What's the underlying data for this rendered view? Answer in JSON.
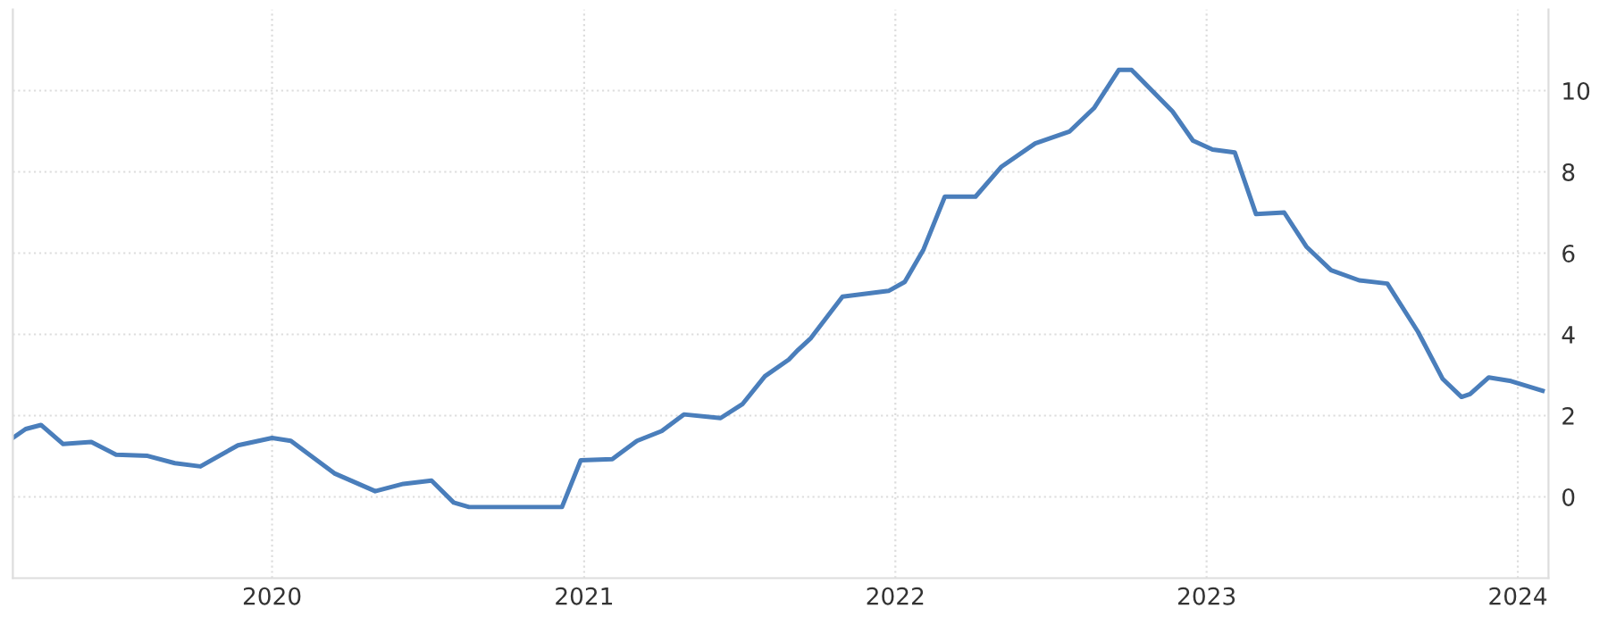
{
  "chart_data": {
    "type": "line",
    "x": [
      "2019-03-03",
      "2019-03-18",
      "2019-04-05",
      "2019-05-01",
      "2019-06-03",
      "2019-07-02",
      "2019-08-08",
      "2019-09-09",
      "2019-10-09",
      "2019-11-22",
      "2020-01-01",
      "2020-01-23",
      "2020-03-14",
      "2020-05-01",
      "2020-06-03",
      "2020-07-06",
      "2020-08-01",
      "2020-08-19",
      "2020-12-06",
      "2020-12-28",
      "2021-02-03",
      "2021-03-04",
      "2021-04-02",
      "2021-04-28",
      "2021-06-10",
      "2021-07-06",
      "2021-08-01",
      "2021-08-29",
      "2021-09-09",
      "2021-09-24",
      "2021-10-31",
      "2021-12-24",
      "2022-01-12",
      "2022-02-03",
      "2022-02-28",
      "2022-04-05",
      "2022-05-05",
      "2022-06-14",
      "2022-07-24",
      "2022-08-22",
      "2022-09-20",
      "2022-10-05",
      "2022-11-22",
      "2022-12-16",
      "2023-01-08",
      "2023-02-03",
      "2023-02-28",
      "2023-04-02",
      "2023-04-28",
      "2023-05-27",
      "2023-06-29",
      "2023-08-01",
      "2023-09-06",
      "2023-10-05",
      "2023-10-27",
      "2023-11-06",
      "2023-11-28",
      "2023-12-24",
      "2024-01-30"
    ],
    "series": [
      {
        "color": "#4a7ebb",
        "values": [
          1.45,
          1.67,
          1.77,
          1.3,
          1.35,
          1.04,
          1.01,
          0.83,
          0.75,
          1.27,
          1.45,
          1.38,
          0.58,
          0.14,
          0.32,
          0.4,
          -0.14,
          -0.25,
          -0.25,
          0.9,
          0.93,
          1.38,
          1.62,
          2.03,
          1.94,
          2.29,
          2.97,
          3.38,
          3.62,
          3.91,
          4.93,
          5.07,
          5.29,
          6.09,
          7.39,
          7.39,
          8.12,
          8.7,
          8.99,
          9.57,
          10.51,
          10.51,
          9.49,
          8.77,
          8.55,
          8.48,
          6.96,
          7.0,
          6.16,
          5.58,
          5.33,
          5.25,
          4.06,
          2.9,
          2.46,
          2.53,
          2.94,
          2.85,
          2.61
        ]
      }
    ],
    "xlim": [
      "2019-03-03",
      "2024-02-06"
    ],
    "xticks": [
      {
        "value": "2020-01-01",
        "label": "2020"
      },
      {
        "value": "2021-01-01",
        "label": "2021"
      },
      {
        "value": "2022-01-01",
        "label": "2022"
      },
      {
        "value": "2023-01-01",
        "label": "2023"
      },
      {
        "value": "2024-01-01",
        "label": "2024"
      }
    ],
    "ylim": [
      -2,
      12
    ],
    "yticks": [
      0,
      2,
      4,
      6,
      8,
      10
    ],
    "grid": true,
    "marker": "none",
    "line_style": "solid"
  }
}
